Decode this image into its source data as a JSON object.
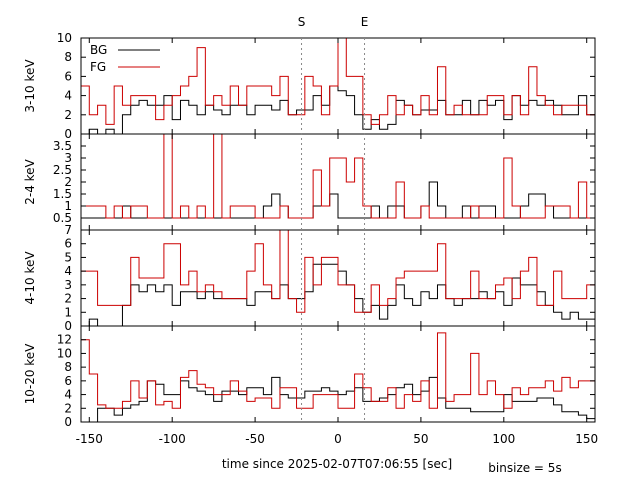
{
  "xlabel": "time since 2025-02-07T07:06:55 [sec]",
  "binsize_label": "binsize = 5s",
  "markers": [
    {
      "label": "S",
      "x": -22
    },
    {
      "label": "E",
      "x": 16
    }
  ],
  "xlim": [
    -155,
    155
  ],
  "xticks": [
    -150,
    -100,
    -50,
    0,
    50,
    100,
    150
  ],
  "colors": {
    "bg": "#000000",
    "fg": "#cc0000",
    "marker": "#888888"
  },
  "bin_edges_start": -155,
  "binsize": 5,
  "chart_data": [
    {
      "type": "step",
      "ylabel": "3-10 keV",
      "ylim": [
        0,
        10
      ],
      "yticks": [
        0,
        2,
        4,
        6,
        8,
        10
      ],
      "legend": {
        "position": "top-left",
        "entries": [
          "BG",
          "FG"
        ]
      },
      "series": [
        {
          "name": "BG",
          "values": [
            0,
            0.5,
            0,
            0.5,
            0,
            2,
            3,
            3.5,
            3,
            3,
            4,
            1.5,
            3.5,
            3,
            2,
            3,
            2.5,
            2,
            3,
            3,
            2,
            3,
            3,
            2.5,
            3.5,
            2,
            2.5,
            2.5,
            4,
            3,
            5,
            4.5,
            4,
            2,
            0.5,
            1.5,
            0.5,
            1,
            3.5,
            3,
            2,
            2.5,
            2.5,
            3.5,
            2,
            2,
            3.5,
            2,
            3.5,
            3,
            3.5,
            1.5,
            4,
            3,
            3.5,
            3,
            3.5,
            3,
            2,
            2,
            4,
            2
          ]
        },
        {
          "name": "FG",
          "values": [
            5,
            2,
            3,
            1,
            5,
            3,
            4,
            4,
            4,
            1.5,
            3,
            4,
            5,
            6,
            9,
            3,
            4,
            3,
            5,
            3,
            5,
            5,
            5,
            4,
            6,
            2,
            2,
            6,
            5,
            2,
            5,
            10,
            6,
            6,
            2,
            1,
            2,
            4,
            2,
            3,
            2,
            4,
            2,
            7,
            2,
            3,
            2,
            2,
            2,
            4,
            4,
            2,
            4,
            2,
            7,
            4,
            3,
            2,
            3,
            3,
            3,
            2
          ]
        }
      ]
    },
    {
      "type": "step",
      "ylabel": "2-4 keV",
      "ylim": [
        0,
        4
      ],
      "yticks": [
        0.5,
        1,
        1.5,
        2,
        2.5,
        3,
        3.5
      ],
      "series": [
        {
          "name": "BG",
          "values": [
            0.5,
            0.5,
            0.5,
            0.5,
            0.5,
            1,
            0.5,
            0.5,
            0.5,
            0.5,
            0.5,
            0.5,
            0.5,
            0.5,
            0.5,
            0.5,
            0.5,
            0.5,
            0.5,
            0.5,
            0.5,
            0.5,
            1,
            1.5,
            1,
            0.5,
            0.5,
            0.5,
            1,
            1,
            1.5,
            0.5,
            0.5,
            0.5,
            0.5,
            1,
            0.5,
            1,
            1,
            0.5,
            0.5,
            1,
            2,
            1,
            0.5,
            0.5,
            1,
            0.5,
            1,
            1,
            0.5,
            0.5,
            0.5,
            1,
            1.5,
            1.5,
            1,
            0.5,
            0.5,
            0.5,
            0.5,
            0.5
          ]
        },
        {
          "name": "FG",
          "values": [
            1,
            1,
            1,
            0.5,
            1,
            0.5,
            1,
            1,
            0.5,
            0.5,
            4,
            0.5,
            1,
            0.5,
            1,
            0.5,
            4,
            0.5,
            1,
            1,
            1,
            0.5,
            0.5,
            0.5,
            1,
            0.5,
            0.5,
            0.5,
            2.5,
            1,
            3,
            3,
            2,
            3,
            1,
            0.5,
            0.5,
            0.5,
            2,
            0.5,
            0.5,
            1,
            0.5,
            0.5,
            0.5,
            0.5,
            0.5,
            1,
            0.5,
            0.5,
            0.5,
            3,
            1,
            0.5,
            0.5,
            0.5,
            1,
            1,
            1,
            0.5,
            2,
            0.5
          ]
        }
      ]
    },
    {
      "type": "step",
      "ylabel": "4-10 keV",
      "ylim": [
        0,
        7
      ],
      "yticks": [
        0,
        1,
        2,
        3,
        4,
        5,
        6,
        7
      ],
      "series": [
        {
          "name": "BG",
          "values": [
            0,
            0.5,
            0,
            0,
            0,
            1.5,
            3,
            2.5,
            3,
            2.5,
            3,
            1.5,
            2.5,
            2.5,
            2,
            2.5,
            2,
            2,
            2,
            2,
            1.5,
            2.5,
            2.5,
            2,
            3,
            2,
            2,
            2.5,
            4.5,
            4.5,
            4.5,
            4,
            3,
            2,
            1,
            1.5,
            0.5,
            1.5,
            3,
            2,
            1.5,
            2.5,
            2,
            3,
            2,
            1.5,
            2,
            2,
            2.5,
            2,
            2.5,
            1.5,
            3.5,
            3,
            3,
            2.5,
            1.5,
            1,
            0.5,
            1,
            0.5,
            0.5
          ]
        },
        {
          "name": "FG",
          "values": [
            4,
            4,
            1.5,
            1.5,
            1.5,
            1.5,
            5,
            3.5,
            3.5,
            3.5,
            6,
            6,
            3,
            4,
            2.5,
            3,
            2.5,
            2,
            2,
            2,
            4,
            6,
            3,
            2,
            7,
            2,
            1,
            5,
            3,
            5,
            5,
            3,
            3,
            1,
            1,
            3,
            1.5,
            2,
            3.5,
            4,
            4,
            4,
            4,
            6,
            2,
            2,
            2,
            4,
            2,
            2,
            3,
            3.5,
            2,
            4,
            5,
            1.5,
            1.5,
            4,
            2,
            2,
            2,
            3
          ]
        }
      ]
    },
    {
      "type": "step",
      "ylabel": "10-20 keV",
      "ylim": [
        0,
        14
      ],
      "yticks": [
        0,
        2,
        4,
        6,
        8,
        10,
        12
      ],
      "series": [
        {
          "name": "BG",
          "values": [
            0,
            0,
            2,
            2,
            1,
            2,
            2.5,
            3,
            6,
            5.5,
            4,
            4,
            6,
            5,
            4.5,
            4,
            3,
            4.5,
            4.5,
            4,
            5,
            5,
            4,
            6.5,
            4,
            3.5,
            3.5,
            4.5,
            4.5,
            5,
            4.5,
            4,
            4.5,
            5,
            3,
            3,
            3.5,
            4,
            5,
            5.5,
            4,
            4.5,
            6.5,
            3.5,
            2,
            2,
            2,
            1.5,
            1.5,
            1.5,
            1.5,
            4,
            3,
            3,
            3,
            3.5,
            3.5,
            2.5,
            1.5,
            1.5,
            1,
            0.5
          ]
        },
        {
          "name": "FG",
          "values": [
            12,
            7,
            2.5,
            2,
            2,
            3,
            6,
            3.5,
            6,
            2.5,
            3,
            2,
            6.5,
            7.5,
            5.5,
            5,
            4,
            4,
            6,
            4.5,
            3,
            3.5,
            3.5,
            2,
            5,
            5,
            2,
            2,
            4,
            4,
            4,
            2,
            2,
            7,
            5,
            3,
            3,
            5,
            2,
            4,
            3,
            6,
            2,
            13,
            3,
            4,
            4,
            10,
            4,
            6,
            4,
            2,
            5,
            4,
            5,
            5,
            6,
            4.5,
            6.5,
            5,
            6,
            6
          ]
        }
      ]
    }
  ]
}
